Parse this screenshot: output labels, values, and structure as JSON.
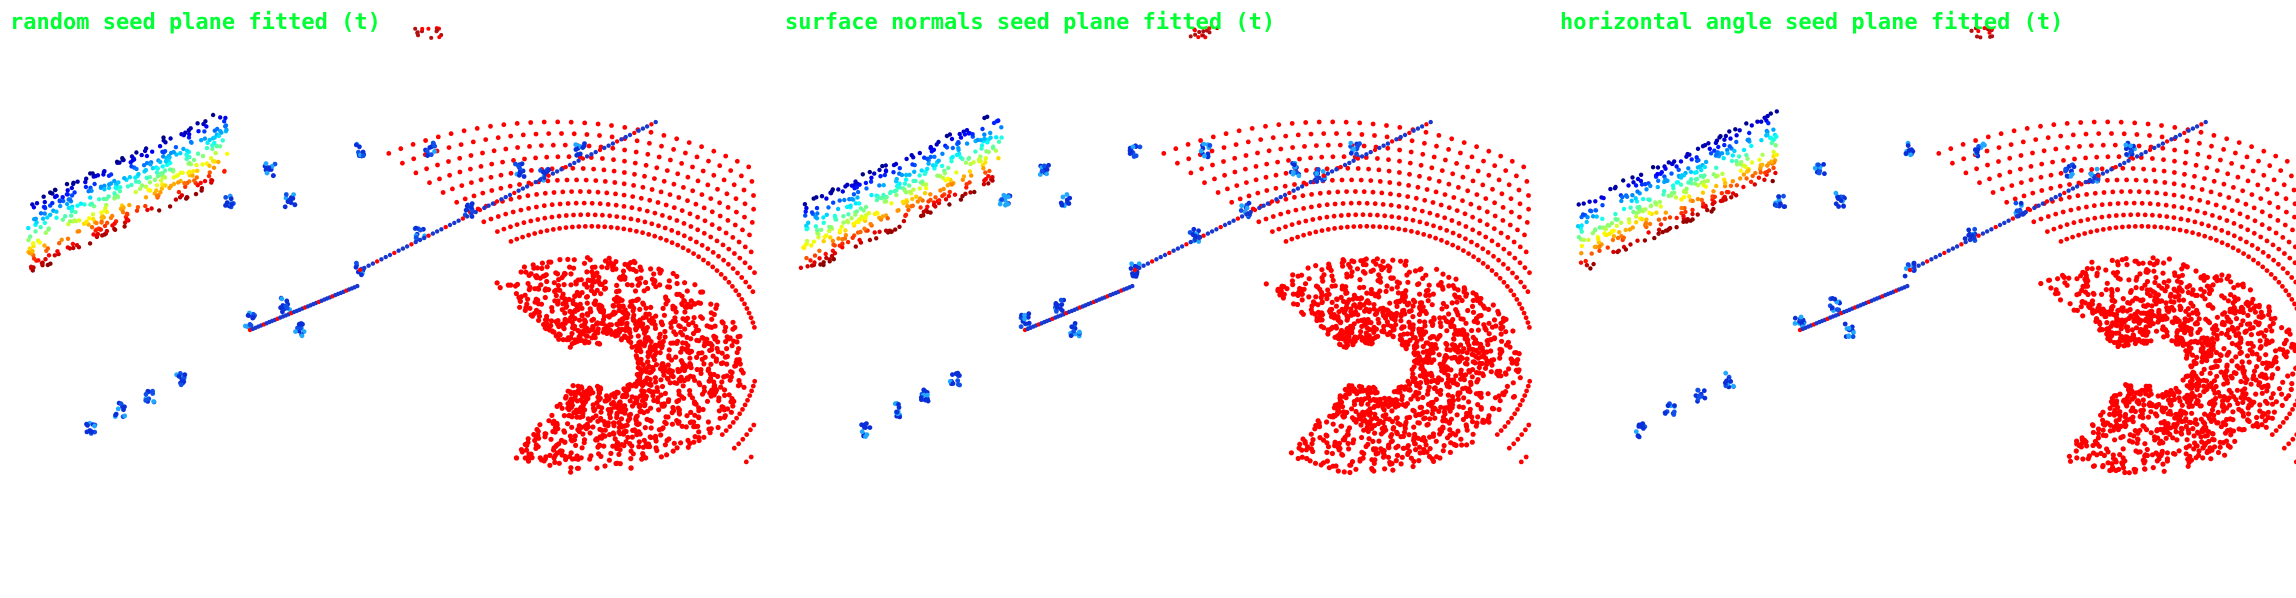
{
  "colors": {
    "title": "#00ff33",
    "ground": "#ff0000",
    "nonground_deep": "#000080",
    "background": "#ffffff"
  },
  "panels": [
    {
      "title": "random seed plane fitted (t)",
      "misclassified_near_ring": false
    },
    {
      "title": "surface normals seed plane fitted (t)",
      "misclassified_near_ring": true
    },
    {
      "title": "horizontal angle seed plane fitted (t)",
      "misclassified_near_ring": true
    }
  ]
}
